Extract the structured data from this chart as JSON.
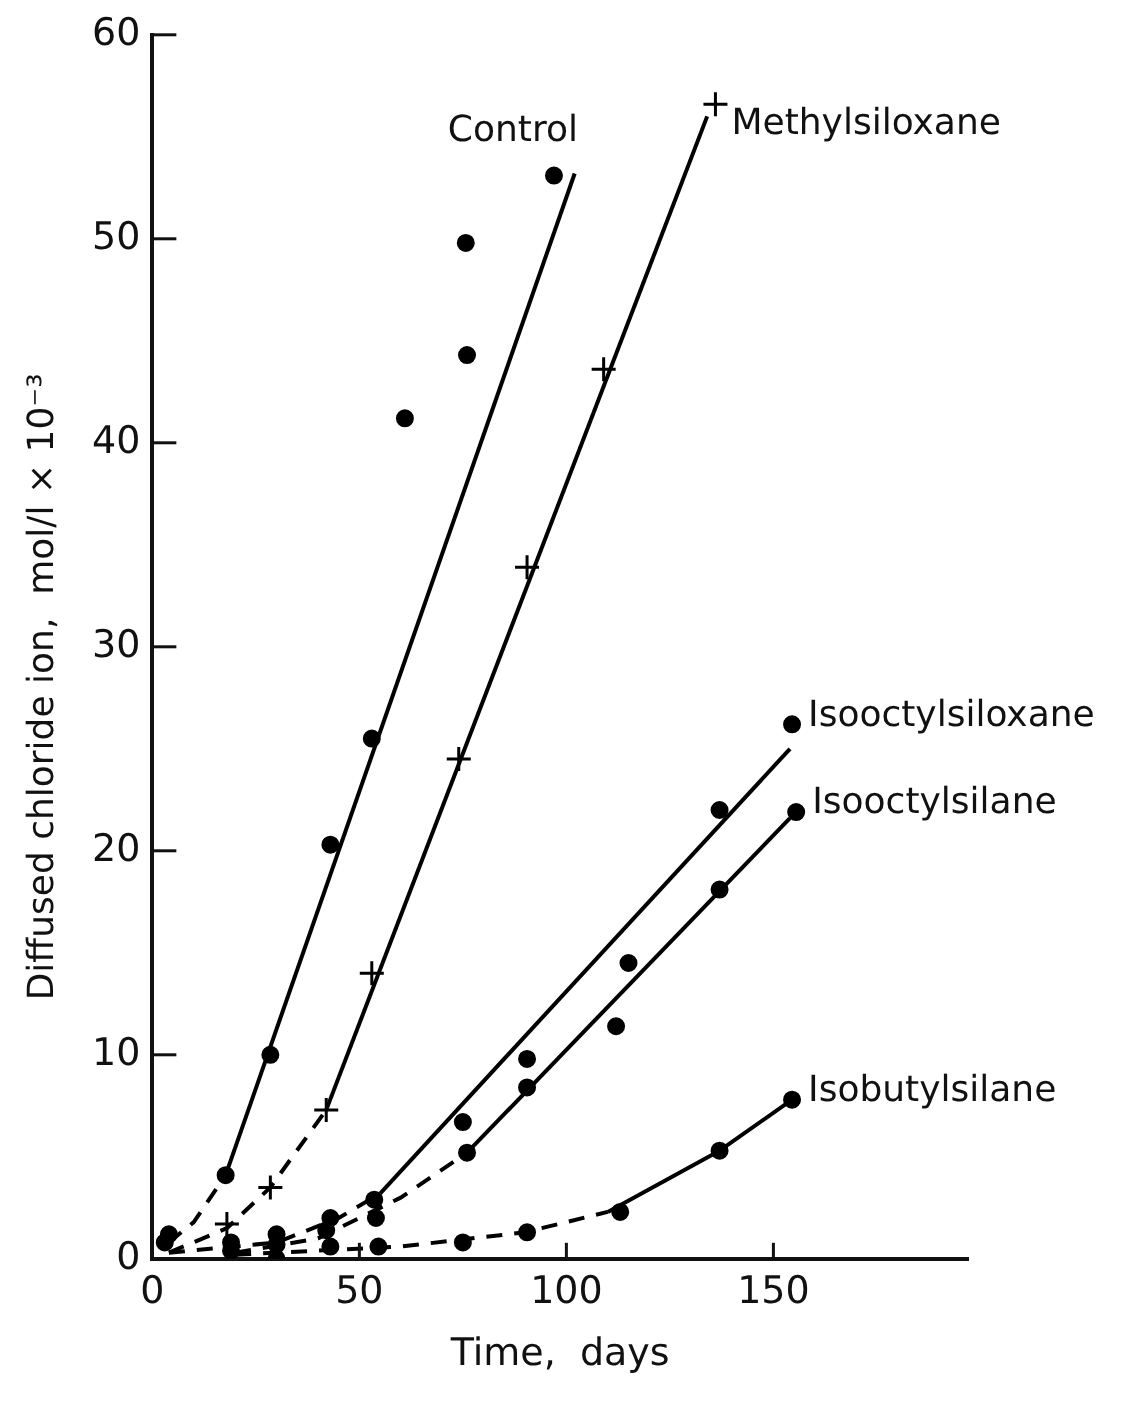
{
  "chart_data": {
    "type": "scatter",
    "xlabel": "Time,  days",
    "ylabel": "Diffused chloride ion,  mol/l × 10⁻³",
    "xlim": [
      0,
      197
    ],
    "ylim": [
      0,
      60
    ],
    "xticks": [
      0,
      50,
      100,
      150
    ],
    "yticks": [
      0,
      10,
      20,
      30,
      40,
      50,
      60
    ],
    "legend": false,
    "series": [
      {
        "name": "Control",
        "marker": "circle",
        "color": "#000000",
        "x": [
          17.7,
          28.5,
          43,
          53,
          61,
          75.7,
          76,
          97
        ],
        "values": [
          4.1,
          10,
          20.3,
          25.5,
          41.2,
          49.8,
          44.3,
          53.1
        ]
      },
      {
        "name": "Methylsiloxane",
        "marker": "cross",
        "color": "#000000",
        "x": [
          18,
          28.5,
          42,
          53,
          74,
          90.5,
          109,
          136
        ],
        "values": [
          1.7,
          3.5,
          7.3,
          14,
          24.5,
          33.9,
          43.6,
          56.6
        ]
      },
      {
        "name": "Isooctylsiloxane",
        "marker": "circle",
        "color": "#000000",
        "x": [
          4,
          19,
          30,
          43,
          53.6,
          75,
          90.5,
          115,
          137,
          154.5
        ],
        "values": [
          1.2,
          0.8,
          1.2,
          2,
          2.9,
          6.7,
          9.8,
          14.5,
          22,
          26.2
        ]
      },
      {
        "name": "Isooctylsilane",
        "marker": "circle",
        "color": "#000000",
        "x": [
          3,
          19,
          30,
          42,
          54,
          76,
          90.5,
          112,
          137,
          155.5
        ],
        "values": [
          0.8,
          0.4,
          0.7,
          1.4,
          2,
          5.2,
          8.4,
          11.4,
          18.1,
          21.9
        ]
      },
      {
        "name": "Isobutylsilane",
        "marker": "circle",
        "color": "#000000",
        "x": [
          30,
          43,
          54.6,
          75,
          90.5,
          113,
          137,
          154.5
        ],
        "values": [
          0,
          0.6,
          0.6,
          0.8,
          1.3,
          2.3,
          5.3,
          7.8
        ]
      },
      {
        "type": "line",
        "line_style": "dashed",
        "marker": "none",
        "color": "#000000",
        "x": [
          4,
          10,
          17.7
        ],
        "values": [
          0.8,
          1.8,
          4.1
        ]
      },
      {
        "type": "line",
        "line_style": "solid",
        "marker": "none",
        "color": "#000000",
        "x": [
          17.7,
          102
        ],
        "values": [
          4.1,
          53.2
        ]
      },
      {
        "type": "line",
        "line_style": "dashed",
        "marker": "none",
        "color": "#000000",
        "x": [
          4,
          18,
          28.5,
          42
        ],
        "values": [
          0.3,
          1.5,
          3.5,
          7.3
        ]
      },
      {
        "type": "line",
        "line_style": "solid",
        "marker": "none",
        "color": "#000000",
        "x": [
          42,
          134
        ],
        "values": [
          7.3,
          56
        ]
      },
      {
        "type": "line",
        "line_style": "dashed",
        "marker": "none",
        "color": "#000000",
        "x": [
          4,
          30,
          45,
          55
        ],
        "values": [
          0.3,
          0.8,
          2,
          3.2
        ]
      },
      {
        "type": "line",
        "line_style": "solid",
        "marker": "none",
        "color": "#000000",
        "x": [
          55,
          154
        ],
        "values": [
          3.2,
          25
        ]
      },
      {
        "type": "line",
        "line_style": "dashed",
        "marker": "none",
        "color": "#000000",
        "x": [
          20,
          40,
          60,
          76
        ],
        "values": [
          0.3,
          1,
          3,
          5.2
        ]
      },
      {
        "type": "line",
        "line_style": "solid",
        "marker": "none",
        "color": "#000000",
        "x": [
          76,
          154
        ],
        "values": [
          5.2,
          21.6
        ]
      },
      {
        "type": "line",
        "line_style": "dashed",
        "marker": "none",
        "color": "#000000",
        "x": [
          20,
          60,
          90,
          110
        ],
        "values": [
          0.2,
          0.6,
          1.3,
          2.3
        ]
      },
      {
        "type": "line",
        "line_style": "solid",
        "marker": "none",
        "color": "#000000",
        "x": [
          110,
          137,
          154.5
        ],
        "values": [
          2.3,
          5.3,
          7.8
        ]
      }
    ]
  }
}
